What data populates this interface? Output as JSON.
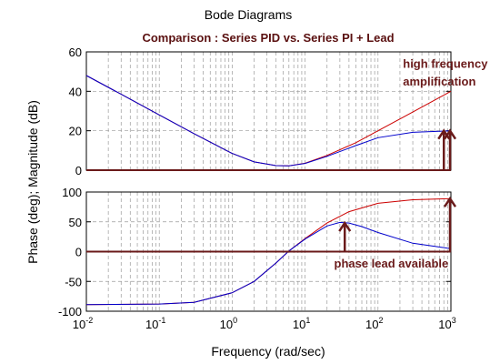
{
  "chart_data": {
    "type": "line",
    "figure_title": "Bode Diagrams",
    "title": "Comparison : Series PID vs. Series PI + Lead",
    "xlabel": "Frequency (rad/sec)",
    "ylabel": "Phase (deg); Magnitude (dB)",
    "xscale": "log",
    "xlim": [
      0.01,
      1000
    ],
    "x_ticks": [
      {
        "base": "10",
        "exp": "-2"
      },
      {
        "base": "10",
        "exp": "-1"
      },
      {
        "base": "10",
        "exp": "0"
      },
      {
        "base": "10",
        "exp": "1"
      },
      {
        "base": "10",
        "exp": "2"
      },
      {
        "base": "10",
        "exp": "3"
      }
    ],
    "grid": true,
    "colors": {
      "pid": "#cc0000",
      "pi_lead": "#0000cc",
      "annotation": "#6a1a1a",
      "title": "#5a1010"
    },
    "magnitude": {
      "ylim": [
        0,
        60
      ],
      "yticks": [
        "0",
        "20",
        "40",
        "60"
      ],
      "series": [
        {
          "color": "#cc0000",
          "x": [
            0.01,
            0.03,
            0.1,
            0.3,
            1,
            2,
            4,
            6,
            10,
            20,
            50,
            100,
            300,
            1000
          ],
          "y": [
            48,
            38.5,
            28,
            18.5,
            8.5,
            4.2,
            2.3,
            2.2,
            3.5,
            7.5,
            14,
            20,
            29.5,
            40
          ]
        },
        {
          "color": "#0000cc",
          "x": [
            0.01,
            0.03,
            0.1,
            0.3,
            1,
            2,
            4,
            6,
            10,
            20,
            50,
            100,
            300,
            1000
          ],
          "y": [
            48,
            38.5,
            28,
            18.5,
            8.5,
            4.2,
            2.3,
            2.2,
            3.4,
            7,
            12.5,
            16.5,
            19.2,
            20
          ]
        }
      ]
    },
    "phase": {
      "ylim": [
        -100,
        100
      ],
      "yticks": [
        "-100",
        "-50",
        "0",
        "50",
        "100"
      ],
      "series": [
        {
          "color": "#cc0000",
          "x": [
            0.01,
            0.1,
            0.3,
            1,
            2,
            4,
            6,
            10,
            20,
            40,
            100,
            300,
            1000
          ],
          "y": [
            -89,
            -88,
            -85,
            -69,
            -50,
            -19,
            1,
            22,
            48,
            67,
            81,
            87,
            89
          ]
        },
        {
          "color": "#0000cc",
          "x": [
            0.01,
            0.1,
            0.3,
            1,
            2,
            4,
            6,
            10,
            20,
            30,
            40,
            60,
            100,
            300,
            1000
          ],
          "y": [
            -89,
            -88,
            -85,
            -69,
            -50,
            -19,
            1,
            21,
            43,
            49,
            48,
            42,
            32,
            14,
            5
          ]
        }
      ]
    },
    "annotations": [
      {
        "panel": "magnitude",
        "text": "high frequency",
        "x": 220,
        "y": 52
      },
      {
        "panel": "magnitude",
        "text": "amplification",
        "x": 220,
        "y": 43
      },
      {
        "panel": "phase",
        "text": "phase lead available",
        "x": 25,
        "y": -27
      }
    ],
    "arrows": [
      {
        "panel": "magnitude",
        "x": 800,
        "from": 0,
        "to": 20
      },
      {
        "panel": "magnitude",
        "x": 1000,
        "from": 0,
        "to": 20
      },
      {
        "panel": "phase",
        "x": 35,
        "from": 0,
        "to": 48
      },
      {
        "panel": "phase",
        "x": 1000,
        "from": 0,
        "to": 89
      }
    ]
  }
}
